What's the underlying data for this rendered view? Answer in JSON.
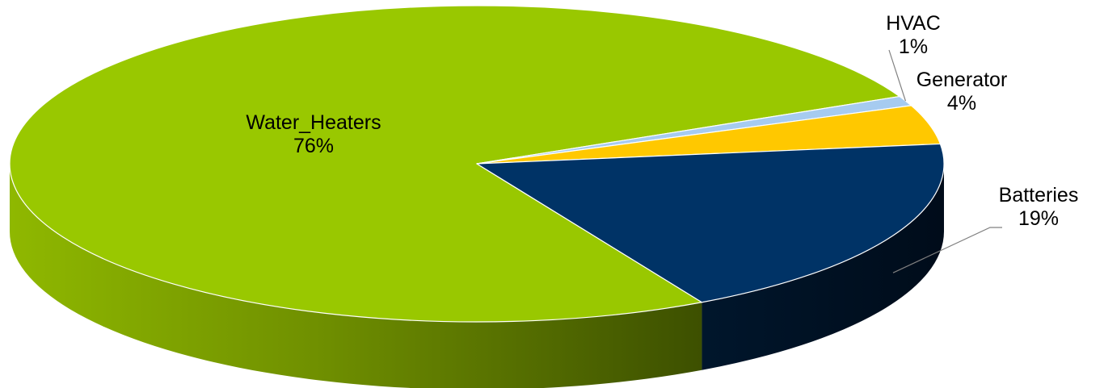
{
  "chart_data": {
    "type": "pie",
    "style": "3d",
    "title": "",
    "slices": [
      {
        "label": "Water_Heaters",
        "value": 76,
        "percent_label": "76%",
        "color": "#99c800"
      },
      {
        "label": "HVAC",
        "value": 1,
        "percent_label": "1%",
        "color": "#a6cbf0"
      },
      {
        "label": "Generator",
        "value": 4,
        "percent_label": "4%",
        "color": "#ffc800"
      },
      {
        "label": "Batteries",
        "value": 19,
        "percent_label": "19%",
        "color": "#003366"
      }
    ]
  }
}
